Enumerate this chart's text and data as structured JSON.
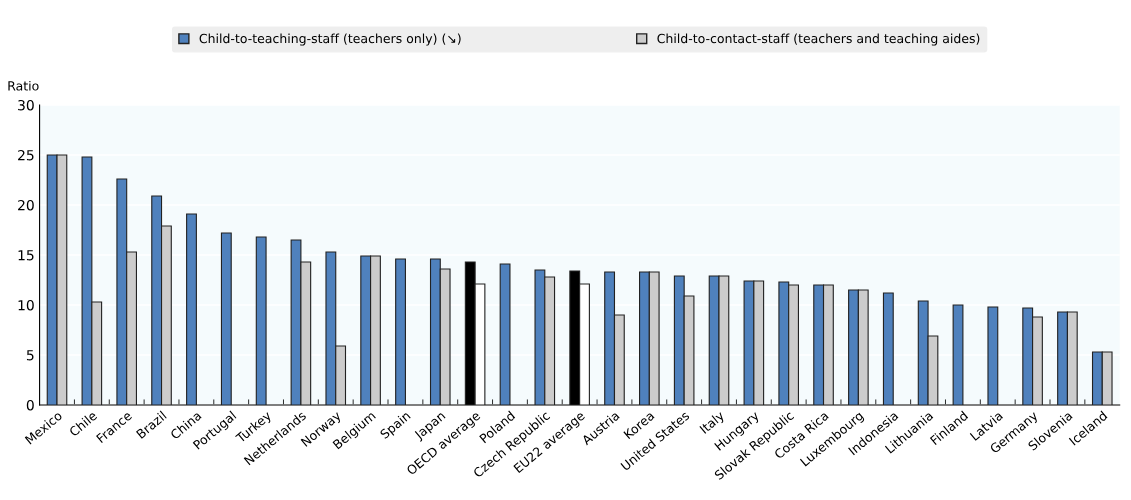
{
  "chart_data": {
    "type": "bar",
    "ylabel": "Ratio",
    "categories": [
      "Mexico",
      "Chile",
      "France",
      "Brazil",
      "China",
      "Portugal",
      "Turkey",
      "Netherlands",
      "Norway",
      "Belgium",
      "Spain",
      "Japan",
      "OECD average",
      "Poland",
      "Czech Republic",
      "EU22 average",
      "Austria",
      "Korea",
      "United States",
      "Italy",
      "Hungary",
      "Slovak Republic",
      "Costa Rica",
      "Luxembourg",
      "Indonesia",
      "Lithuania",
      "Finland",
      "Latvia",
      "Germany",
      "Slovenia",
      "Iceland"
    ],
    "series": [
      {
        "name": "Child-to-teaching-staff (teachers only) (↘)",
        "color": "#4f81bd",
        "colors": [
          "#4f81bd",
          "#4f81bd",
          "#4f81bd",
          "#4f81bd",
          "#4f81bd",
          "#4f81bd",
          "#4f81bd",
          "#4f81bd",
          "#4f81bd",
          "#4f81bd",
          "#4f81bd",
          "#4f81bd",
          "#000000",
          "#4f81bd",
          "#4f81bd",
          "#000000",
          "#4f81bd",
          "#4f81bd",
          "#4f81bd",
          "#4f81bd",
          "#4f81bd",
          "#4f81bd",
          "#4f81bd",
          "#4f81bd",
          "#4f81bd",
          "#4f81bd",
          "#4f81bd",
          "#4f81bd",
          "#4f81bd",
          "#4f81bd",
          "#4f81bd"
        ],
        "values": [
          25.0,
          24.8,
          22.6,
          20.9,
          19.1,
          17.2,
          16.8,
          16.5,
          15.3,
          14.9,
          14.6,
          14.6,
          14.3,
          14.1,
          13.5,
          13.4,
          13.3,
          13.3,
          12.9,
          12.9,
          12.4,
          12.3,
          12.0,
          11.5,
          11.2,
          10.4,
          10.0,
          9.8,
          9.7,
          9.3,
          5.3
        ]
      },
      {
        "name": "Child-to-contact-staff (teachers and teaching aides)",
        "color": "#cccccc",
        "colors": [
          "#cccccc",
          "#cccccc",
          "#cccccc",
          "#cccccc",
          "#cccccc",
          "#cccccc",
          "#cccccc",
          "#cccccc",
          "#cccccc",
          "#cccccc",
          "#cccccc",
          "#cccccc",
          "#ffffff",
          "#cccccc",
          "#cccccc",
          "#ffffff",
          "#cccccc",
          "#cccccc",
          "#cccccc",
          "#cccccc",
          "#cccccc",
          "#cccccc",
          "#cccccc",
          "#cccccc",
          "#cccccc",
          "#cccccc",
          "#cccccc",
          "#cccccc",
          "#cccccc",
          "#cccccc",
          "#cccccc"
        ],
        "values": [
          25.0,
          10.3,
          15.3,
          17.9,
          null,
          null,
          null,
          14.3,
          5.9,
          14.9,
          null,
          13.6,
          12.1,
          null,
          12.8,
          12.1,
          9.0,
          13.3,
          10.9,
          12.9,
          12.4,
          12.0,
          12.0,
          11.5,
          null,
          6.9,
          null,
          null,
          8.8,
          9.3,
          5.3
        ]
      }
    ],
    "ylim": [
      0,
      30
    ],
    "yticks": [
      0,
      5,
      10,
      15,
      20,
      25,
      30
    ],
    "grid": true,
    "legend": "top"
  }
}
